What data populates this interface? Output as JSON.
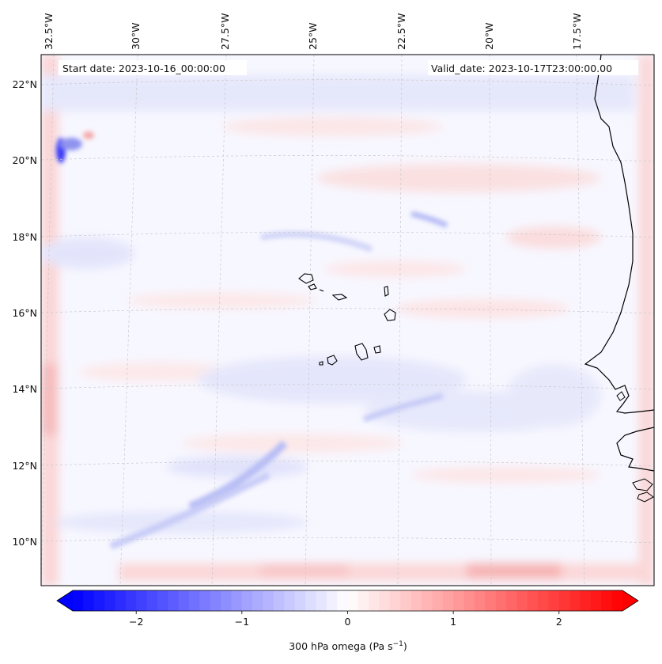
{
  "map": {
    "start_date_label": "Start date: 2023-10-16_00:00:00",
    "valid_date_label": "Valid_date: 2023-10-17T23:00:00.00",
    "longitude_labels": [
      "32.5°W",
      "30°W",
      "27.5°W",
      "25°W",
      "22.5°W",
      "20°W",
      "17.5°W"
    ],
    "latitude_labels": [
      "22°N",
      "20°N",
      "18°N",
      "16°N",
      "14°N",
      "12°N",
      "10°N"
    ],
    "field": "300 hPa omega",
    "region": "Cape Verde / West Africa coast"
  },
  "colorbar": {
    "label": "300 hPa omega (Pa s",
    "label_exponent": "−1",
    "label_close": ")",
    "tick_labels": [
      "−2",
      "−1",
      "0",
      "1",
      "2"
    ],
    "tick_values": [
      -2,
      -1,
      0,
      1,
      2
    ],
    "range": [
      -2.6,
      2.6
    ],
    "low_color": "#0000ff",
    "mid_color": "#ffffff",
    "high_color": "#ff0000"
  }
}
